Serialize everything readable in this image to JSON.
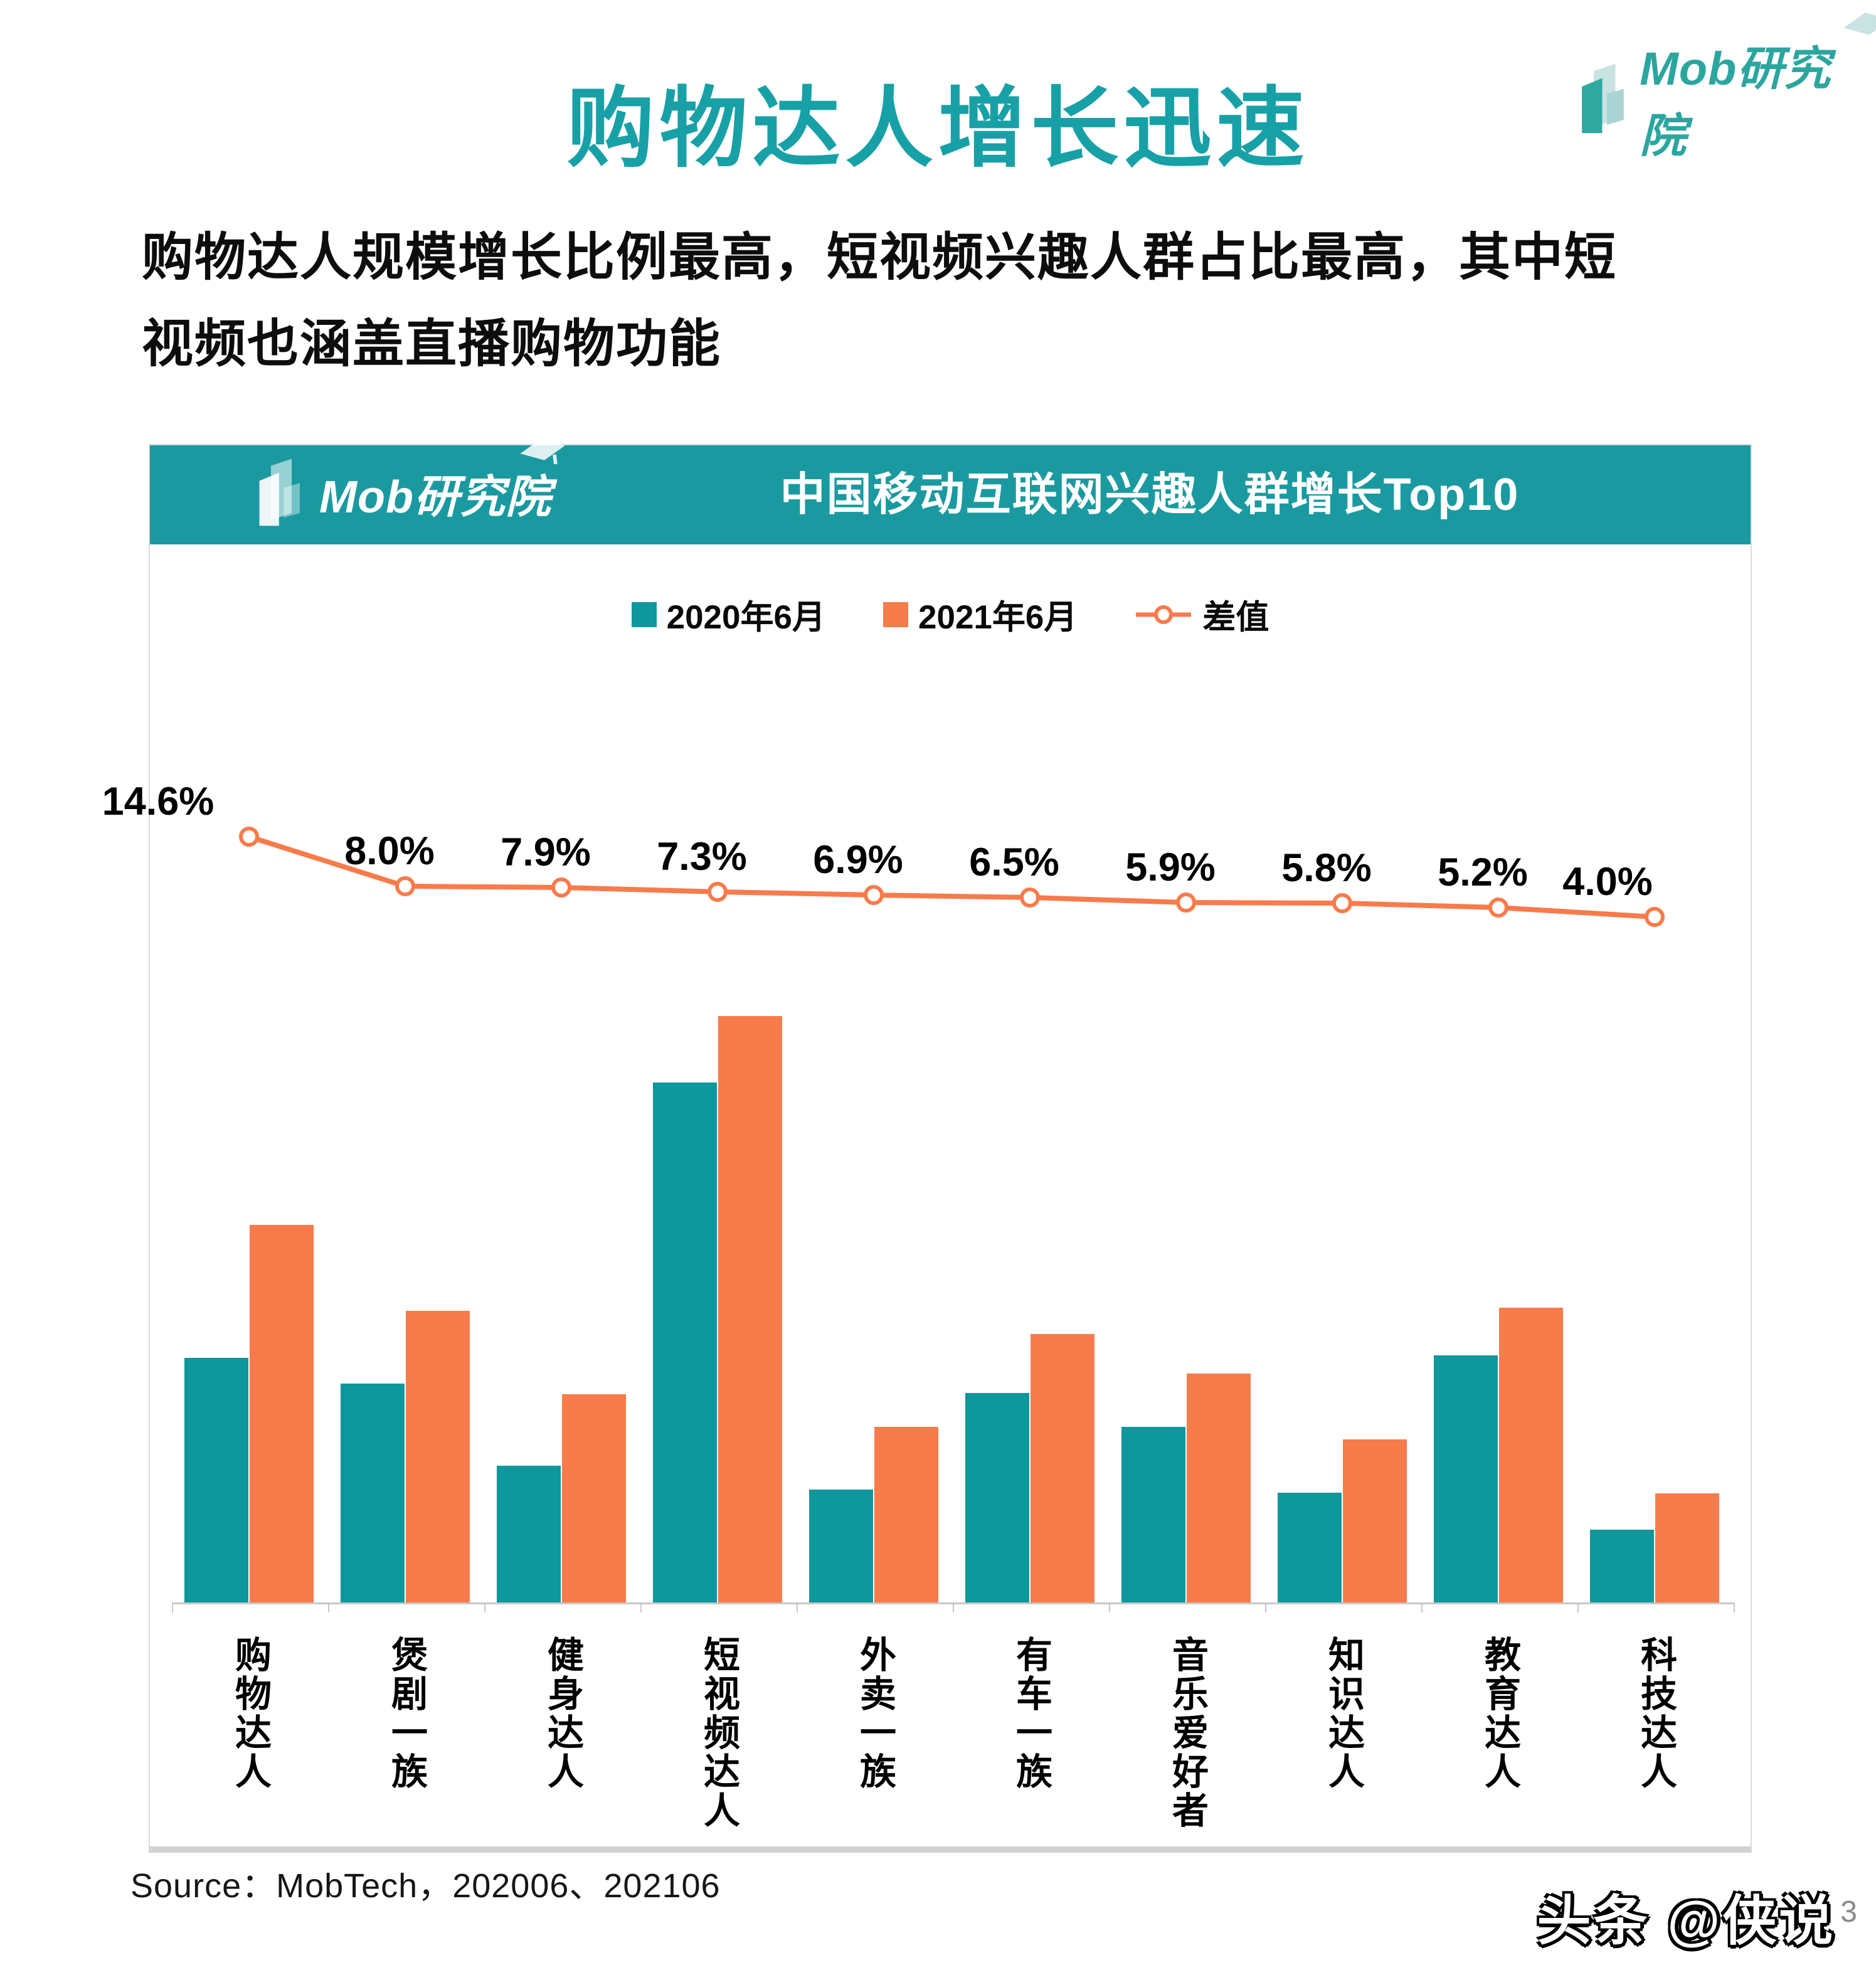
{
  "page": {
    "title": "购物达人增长迅速",
    "subtitle_line1": "购物达人规模增长比例最高，短视频兴趣人群占比最高，其中短",
    "subtitle_line2": "视频也涵盖直播购物功能",
    "source": "Source：MobTech，202006、202106",
    "watermark": "头条 @侠说",
    "page_number": "3"
  },
  "logo": {
    "text": "Mob研究院"
  },
  "chart": {
    "header_title": "中国移动互联网兴趣人群增长Top10"
  },
  "colors": {
    "teal": "#0E979C",
    "orange": "#F87B4B",
    "band": "#1A9AA0",
    "title": "#17A1A7",
    "logo": "#2BA69F",
    "axis": "#C8C8C8",
    "page_number_gray": "#8A8A8A"
  },
  "chart_data": {
    "type": "bar",
    "title": "中国移动互联网兴趣人群增长Top10",
    "categories": [
      "购物达人",
      "煲剧一族",
      "健身达人",
      "短视频达人",
      "外卖一族",
      "有车一族",
      "音乐爱好者",
      "知识达人",
      "教育达人",
      "科技达人"
    ],
    "unit": "%",
    "grid": false,
    "legend_position": "top",
    "series": [
      {
        "name": "2020年6月",
        "type": "bar",
        "color": "#0E979C",
        "values": [
          26.9,
          24.1,
          15.0,
          57.2,
          12.4,
          23.0,
          19.3,
          12.1,
          27.2,
          8.0
        ]
      },
      {
        "name": "2021年6月",
        "type": "bar",
        "color": "#F87B4B",
        "values": [
          41.5,
          32.1,
          22.9,
          64.5,
          19.3,
          29.5,
          25.2,
          17.9,
          32.4,
          12.0
        ]
      },
      {
        "name": "差值",
        "type": "line",
        "color": "#F87B4B",
        "secondary_axis": true,
        "values": [
          14.6,
          8.0,
          7.9,
          7.3,
          6.9,
          6.5,
          5.9,
          5.8,
          5.2,
          4.0
        ],
        "labels": [
          "14.6%",
          "8.0%",
          "7.9%",
          "7.3%",
          "6.9%",
          "6.5%",
          "5.9%",
          "5.8%",
          "5.2%",
          "4.0%"
        ]
      }
    ]
  }
}
